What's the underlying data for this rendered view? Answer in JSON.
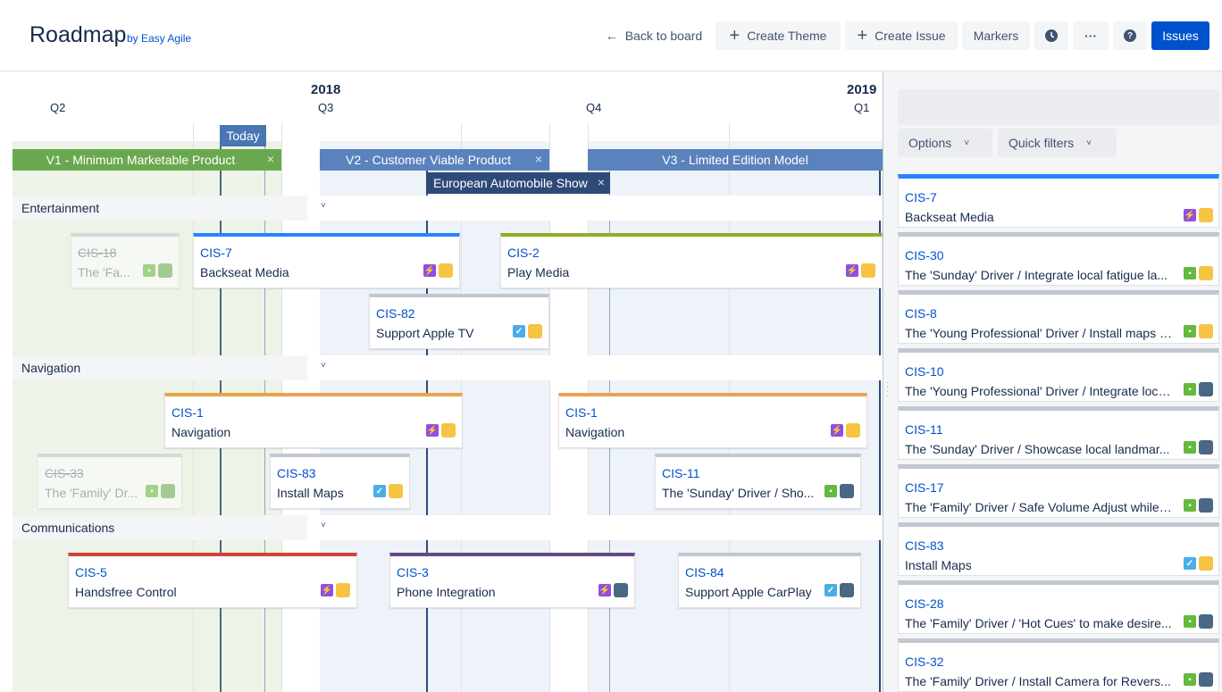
{
  "header": {
    "title": "Roadmap",
    "byline": "by Easy Agile",
    "back_label": "Back to board",
    "back_icon": "←",
    "create_theme": "Create Theme",
    "create_issue": "Create Issue",
    "markers": "Markers",
    "clock_icon": "clock-icon",
    "more_label": "···",
    "help_label": "?",
    "issues": "Issues"
  },
  "timeline": {
    "years": [
      "2018",
      "2019"
    ],
    "quarters": [
      "Q2",
      "Q3",
      "Q4",
      "Q1"
    ],
    "today_label": "Today",
    "versions": [
      {
        "name": "V1 - Minimum Marketable Product",
        "color": "#6aa84f"
      },
      {
        "name": "V2 - Customer Viable Product",
        "color": "#5a82bd"
      },
      {
        "name": "V3 - Limited Edition Model",
        "color": "#5a82bd"
      }
    ],
    "marker_label": "European Automobile Show",
    "close_glyph": "×",
    "themes": [
      {
        "name": "Entertainment",
        "chevron": "˅"
      },
      {
        "name": "Navigation",
        "chevron": "˅"
      },
      {
        "name": "Communications",
        "chevron": "˅"
      }
    ],
    "cards": [
      {
        "key": "CIS-18",
        "name": "The 'Fa...",
        "color": "#c1c7d0",
        "icon": "story",
        "swatch": "#6aa84f"
      },
      {
        "key": "CIS-7",
        "name": "Backseat Media",
        "color": "#2684ff",
        "icon": "epic",
        "swatch": "#f6c342"
      },
      {
        "key": "CIS-2",
        "name": "Play Media",
        "color": "#8eb021",
        "icon": "epic",
        "swatch": "#f6c342"
      },
      {
        "key": "CIS-82",
        "name": "Support Apple TV",
        "color": "#c1c7d0",
        "icon": "task",
        "swatch": "#f6c342"
      },
      {
        "key": "CIS-1",
        "name": "Navigation",
        "color": "#e8a44a",
        "icon": "epic",
        "swatch": "#f6c342"
      },
      {
        "key": "CIS-1",
        "name": "Navigation",
        "color": "#e8a44a",
        "icon": "epic",
        "swatch": "#f6c342"
      },
      {
        "key": "CIS-33",
        "name": "The 'Family' Dr...",
        "color": "#c1c7d0",
        "icon": "story",
        "swatch": "#6aa84f"
      },
      {
        "key": "CIS-83",
        "name": "Install Maps",
        "color": "#c1c7d0",
        "icon": "task",
        "swatch": "#f6c342"
      },
      {
        "key": "CIS-11",
        "name": "The 'Sunday' Driver / Sho...",
        "color": "#c1c7d0",
        "icon": "story",
        "swatch": "#4a6785"
      },
      {
        "key": "CIS-5",
        "name": "Handsfree Control",
        "color": "#d04437",
        "icon": "epic",
        "swatch": "#f6c342"
      },
      {
        "key": "CIS-3",
        "name": "Phone Integration",
        "color": "#654982",
        "icon": "epic",
        "swatch": "#4a6785"
      },
      {
        "key": "CIS-84",
        "name": "Support Apple CarPlay",
        "color": "#c1c7d0",
        "icon": "task",
        "swatch": "#4a6785"
      }
    ]
  },
  "panel": {
    "options": "Options",
    "quick_filters": "Quick filters",
    "chevron": "˅",
    "issues": [
      {
        "key": "CIS-7",
        "name": "Backseat Media",
        "color": "#2684ff",
        "icon": "epic",
        "swatch": "#f6c342"
      },
      {
        "key": "CIS-30",
        "name": "The 'Sunday' Driver / Integrate local fatigue la...",
        "color": "#c1c7d0",
        "icon": "story",
        "swatch": "#f6c342"
      },
      {
        "key": "CIS-8",
        "name": "The 'Young Professional' Driver / Install maps s...",
        "color": "#c1c7d0",
        "icon": "story",
        "swatch": "#f6c342"
      },
      {
        "key": "CIS-10",
        "name": "The 'Young Professional' Driver / Integrate loca...",
        "color": "#c1c7d0",
        "icon": "story",
        "swatch": "#4a6785"
      },
      {
        "key": "CIS-11",
        "name": "The 'Sunday' Driver / Showcase local landmar...",
        "color": "#c1c7d0",
        "icon": "story",
        "swatch": "#4a6785"
      },
      {
        "key": "CIS-17",
        "name": "The 'Family' Driver / Safe Volume Adjust while ...",
        "color": "#c1c7d0",
        "icon": "story",
        "swatch": "#4a6785"
      },
      {
        "key": "CIS-83",
        "name": "Install Maps",
        "color": "#c1c7d0",
        "icon": "task",
        "swatch": "#f6c342"
      },
      {
        "key": "CIS-28",
        "name": "The 'Family' Driver / 'Hot Cues' to make desire...",
        "color": "#c1c7d0",
        "icon": "story",
        "swatch": "#4a6785"
      },
      {
        "key": "CIS-32",
        "name": "The 'Family' Driver / Install Camera for Revers...",
        "color": "#c1c7d0",
        "icon": "story",
        "swatch": "#4a6785"
      }
    ]
  }
}
